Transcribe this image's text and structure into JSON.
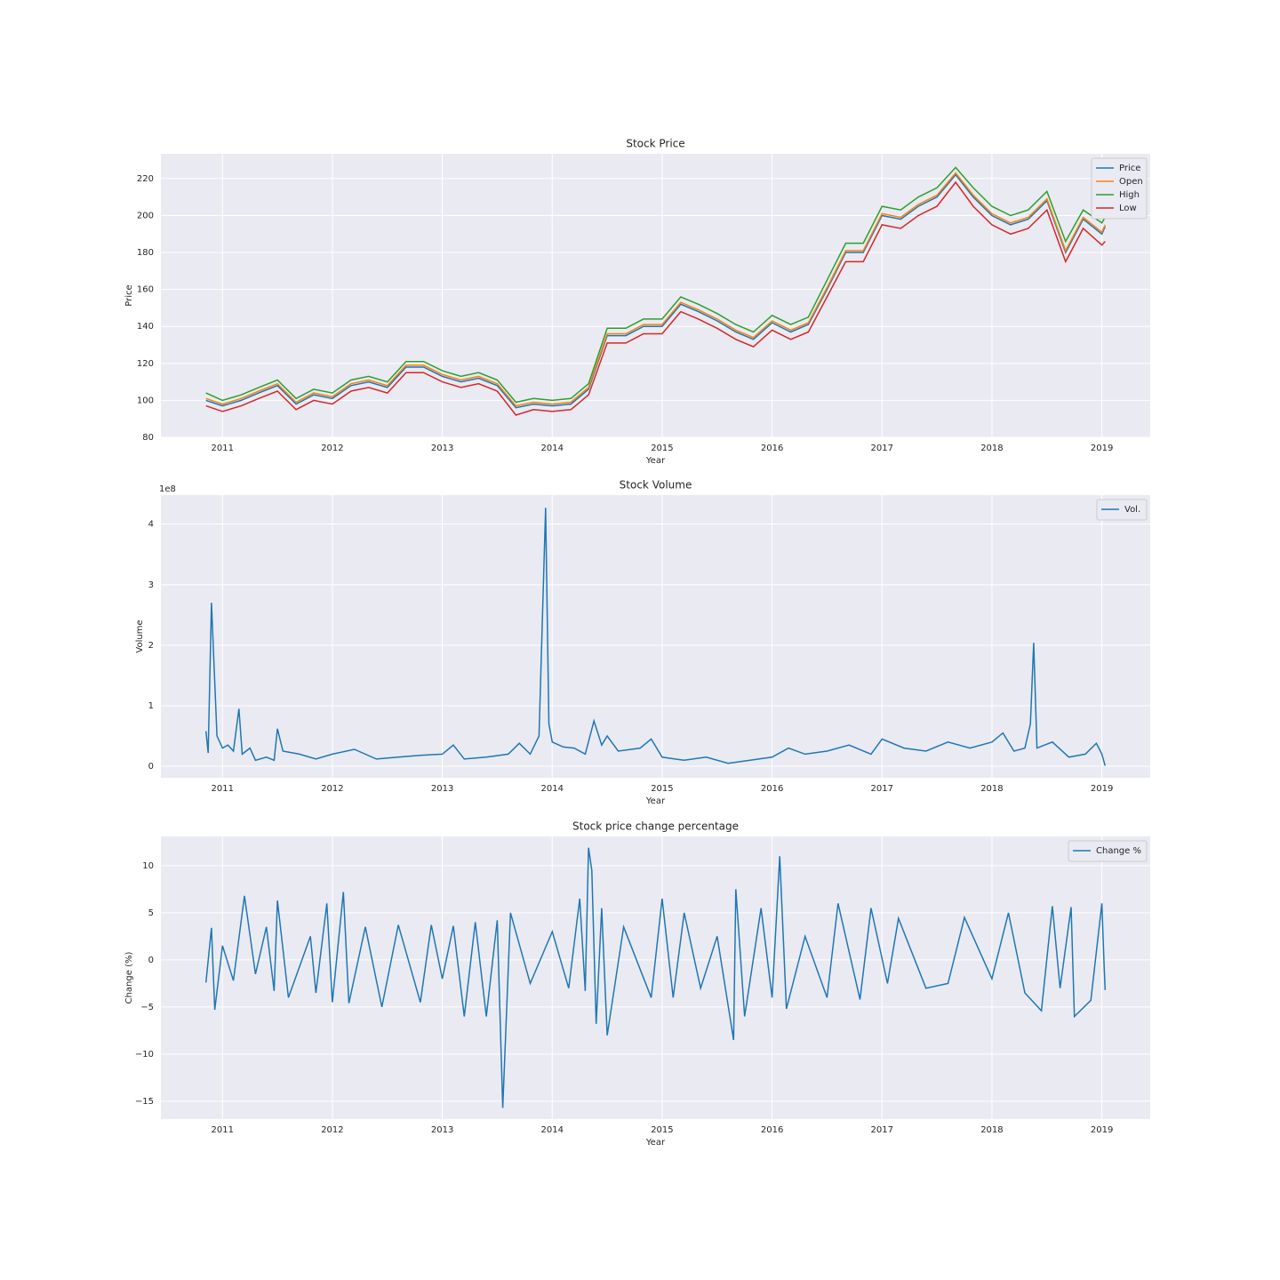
{
  "chart_data": [
    {
      "type": "line",
      "title": "Stock Price",
      "xlabel": "Year",
      "ylabel": "Price",
      "x": [
        2010.85,
        2011.0,
        2011.17,
        2011.33,
        2011.5,
        2011.67,
        2011.83,
        2012.0,
        2012.17,
        2012.33,
        2012.5,
        2012.67,
        2012.83,
        2013.0,
        2013.17,
        2013.33,
        2013.5,
        2013.67,
        2013.83,
        2014.0,
        2014.17,
        2014.33,
        2014.5,
        2014.67,
        2014.83,
        2015.0,
        2015.17,
        2015.33,
        2015.5,
        2015.67,
        2015.83,
        2016.0,
        2016.17,
        2016.33,
        2016.5,
        2016.67,
        2016.83,
        2017.0,
        2017.17,
        2017.33,
        2017.5,
        2017.67,
        2017.83,
        2018.0,
        2018.17,
        2018.33,
        2018.5,
        2018.67,
        2018.83,
        2019.0,
        2019.03
      ],
      "series": [
        {
          "name": "Price",
          "color": "#1f77b4",
          "values": [
            100,
            97,
            100,
            104,
            108,
            98,
            103,
            101,
            108,
            110,
            107,
            118,
            118,
            113,
            110,
            112,
            108,
            96,
            98,
            97,
            98,
            106,
            135,
            135,
            140,
            140,
            152,
            148,
            143,
            137,
            133,
            142,
            137,
            141,
            160,
            180,
            180,
            200,
            198,
            205,
            210,
            222,
            210,
            200,
            195,
            198,
            208,
            180,
            198,
            190,
            194
          ]
        },
        {
          "name": "Open",
          "color": "#ff7f0e",
          "values": [
            101,
            98,
            101,
            105,
            109,
            99,
            104,
            102,
            109,
            111,
            108,
            119,
            119,
            114,
            111,
            113,
            109,
            97,
            99,
            98,
            99,
            107,
            136,
            136,
            141,
            141,
            153,
            149,
            144,
            138,
            134,
            143,
            138,
            142,
            161,
            181,
            181,
            201,
            199,
            206,
            211,
            223,
            211,
            201,
            196,
            199,
            209,
            181,
            199,
            191,
            195
          ]
        },
        {
          "name": "High",
          "color": "#2ca02c",
          "values": [
            104,
            100,
            103,
            107,
            111,
            101,
            106,
            104,
            111,
            113,
            110,
            121,
            121,
            116,
            113,
            115,
            111,
            99,
            101,
            100,
            101,
            109,
            139,
            139,
            144,
            144,
            156,
            152,
            147,
            141,
            137,
            146,
            141,
            145,
            165,
            185,
            185,
            205,
            203,
            210,
            215,
            226,
            215,
            205,
            200,
            203,
            213,
            186,
            203,
            196,
            199
          ]
        },
        {
          "name": "Low",
          "color": "#d62728",
          "values": [
            97,
            94,
            97,
            101,
            105,
            95,
            100,
            98,
            105,
            107,
            104,
            115,
            115,
            110,
            107,
            109,
            105,
            92,
            95,
            94,
            95,
            103,
            131,
            131,
            136,
            136,
            148,
            144,
            139,
            133,
            129,
            138,
            133,
            137,
            156,
            175,
            175,
            195,
            193,
            200,
            205,
            218,
            205,
            195,
            190,
            193,
            203,
            175,
            193,
            184,
            186
          ]
        }
      ],
      "xlim": [
        2010.44,
        2019.44
      ],
      "xticks": [
        2011,
        2012,
        2013,
        2014,
        2015,
        2016,
        2017,
        2018,
        2019
      ],
      "ylim": [
        80,
        233.4
      ],
      "yticks": [
        80,
        100,
        120,
        140,
        160,
        180,
        200,
        220
      ],
      "grid": true,
      "legend": "upper right"
    },
    {
      "type": "line",
      "title": "Stock Volume",
      "xlabel": "Year",
      "ylabel": "Volume",
      "y_offset_label": "1e8",
      "x": [
        2010.85,
        2010.87,
        2010.9,
        2010.95,
        2011.0,
        2011.05,
        2011.1,
        2011.15,
        2011.18,
        2011.25,
        2011.3,
        2011.4,
        2011.47,
        2011.5,
        2011.55,
        2011.7,
        2011.85,
        2012.0,
        2012.2,
        2012.4,
        2012.6,
        2012.8,
        2013.0,
        2013.1,
        2013.2,
        2013.4,
        2013.6,
        2013.7,
        2013.8,
        2013.88,
        2013.94,
        2013.97,
        2014.0,
        2014.1,
        2014.2,
        2014.3,
        2014.38,
        2014.45,
        2014.5,
        2014.6,
        2014.8,
        2014.9,
        2015.0,
        2015.2,
        2015.4,
        2015.6,
        2015.8,
        2016.0,
        2016.15,
        2016.3,
        2016.5,
        2016.7,
        2016.9,
        2017.0,
        2017.2,
        2017.4,
        2017.6,
        2017.8,
        2018.0,
        2018.1,
        2018.2,
        2018.3,
        2018.35,
        2018.38,
        2018.41,
        2018.55,
        2018.7,
        2018.85,
        2018.95,
        2019.0,
        2019.03
      ],
      "series": [
        {
          "name": "Vol.",
          "color": "#1f77b4",
          "values": [
            58000000,
            22000000,
            270000000,
            50000000,
            30000000,
            35000000,
            25000000,
            95000000,
            20000000,
            30000000,
            10000000,
            15000000,
            10000000,
            62000000,
            25000000,
            20000000,
            12000000,
            20000000,
            28000000,
            12000000,
            15000000,
            18000000,
            20000000,
            35000000,
            12000000,
            15000000,
            20000000,
            38000000,
            20000000,
            50000000,
            427000000,
            70000000,
            40000000,
            32000000,
            30000000,
            20000000,
            75000000,
            35000000,
            50000000,
            25000000,
            30000000,
            45000000,
            15000000,
            10000000,
            15000000,
            5000000,
            10000000,
            15000000,
            30000000,
            20000000,
            25000000,
            35000000,
            20000000,
            45000000,
            30000000,
            25000000,
            40000000,
            30000000,
            40000000,
            55000000,
            25000000,
            30000000,
            70000000,
            204000000,
            30000000,
            40000000,
            15000000,
            20000000,
            38000000,
            20000000,
            1000000
          ]
        }
      ],
      "xlim": [
        2010.44,
        2019.44
      ],
      "xticks": [
        2011,
        2012,
        2013,
        2014,
        2015,
        2016,
        2017,
        2018,
        2019
      ],
      "ylim": [
        -19000000,
        448000000
      ],
      "yticks": [
        0,
        {
          "value": 100000000,
          "label": "1"
        },
        {
          "value": 200000000,
          "label": "2"
        },
        {
          "value": 300000000,
          "label": "3"
        },
        {
          "value": 400000000,
          "label": "4"
        }
      ],
      "grid": true,
      "legend": "upper right"
    },
    {
      "type": "line",
      "title": "Stock price change percentage",
      "xlabel": "Year",
      "ylabel": "Change (%)",
      "x": [
        2010.85,
        2010.9,
        2010.93,
        2011.0,
        2011.1,
        2011.2,
        2011.3,
        2011.4,
        2011.47,
        2011.5,
        2011.6,
        2011.8,
        2011.85,
        2011.95,
        2012.0,
        2012.1,
        2012.15,
        2012.3,
        2012.45,
        2012.6,
        2012.8,
        2012.9,
        2013.0,
        2013.1,
        2013.2,
        2013.3,
        2013.4,
        2013.5,
        2013.55,
        2013.62,
        2013.8,
        2014.0,
        2014.15,
        2014.25,
        2014.3,
        2014.33,
        2014.36,
        2014.4,
        2014.45,
        2014.5,
        2014.65,
        2014.9,
        2015.0,
        2015.1,
        2015.2,
        2015.35,
        2015.5,
        2015.65,
        2015.67,
        2015.75,
        2015.9,
        2016.0,
        2016.07,
        2016.13,
        2016.3,
        2016.5,
        2016.6,
        2016.8,
        2016.9,
        2017.05,
        2017.15,
        2017.4,
        2017.6,
        2017.75,
        2018.0,
        2018.15,
        2018.3,
        2018.45,
        2018.55,
        2018.62,
        2018.72,
        2018.75,
        2018.9,
        2019.0,
        2019.02,
        2019.03
      ],
      "series": [
        {
          "name": "Change %",
          "color": "#1f77b4",
          "values": [
            -2.4,
            3.4,
            -5.3,
            1.5,
            -2.2,
            6.8,
            -1.5,
            3.5,
            -3.3,
            6.3,
            -4.0,
            2.5,
            -3.5,
            6.0,
            -4.5,
            7.2,
            -4.6,
            3.5,
            -5.0,
            3.7,
            -4.5,
            3.7,
            -2.0,
            3.6,
            -6.0,
            4.0,
            -6.0,
            4.2,
            -15.7,
            5.0,
            -2.5,
            3.0,
            -3.0,
            6.5,
            -3.3,
            11.9,
            9.5,
            -6.8,
            5.5,
            -8.0,
            3.5,
            -4.0,
            6.5,
            -4.0,
            5.0,
            -3.0,
            2.5,
            -8.5,
            7.5,
            -6.0,
            5.5,
            -4.0,
            11.0,
            -5.2,
            2.5,
            -4.0,
            6.0,
            -4.2,
            5.5,
            -2.5,
            4.4,
            -3.0,
            -2.5,
            4.5,
            -2.0,
            5.0,
            -3.5,
            -5.4,
            5.7,
            -3.0,
            5.6,
            -6.0,
            -4.3,
            6.0,
            -0.5,
            -3.2
          ]
        }
      ],
      "xlim": [
        2010.44,
        2019.44
      ],
      "xticks": [
        2011,
        2012,
        2013,
        2014,
        2015,
        2016,
        2017,
        2018,
        2019
      ],
      "ylim": [
        -16.9,
        13.1
      ],
      "yticks": [
        {
          "value": -15,
          "label": "−15"
        },
        {
          "value": -10,
          "label": "−10"
        },
        {
          "value": -5,
          "label": "−5"
        },
        0,
        5,
        10
      ],
      "grid": true,
      "legend": "upper right"
    }
  ]
}
